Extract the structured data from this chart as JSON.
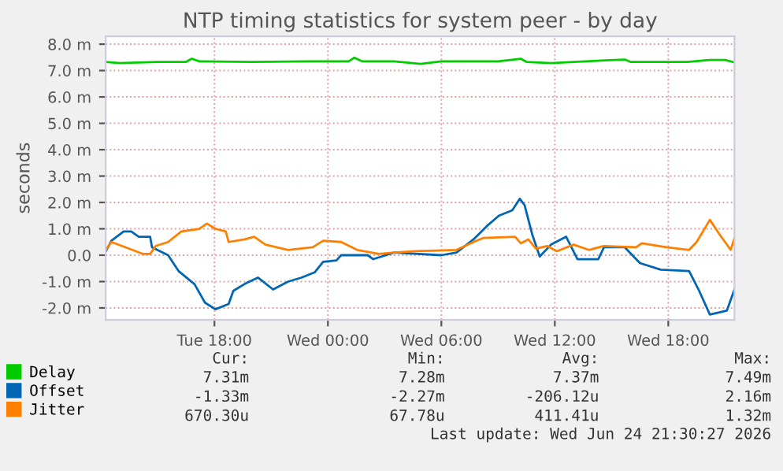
{
  "chart_data": {
    "type": "line",
    "title": "NTP timing statistics for system peer - by day",
    "ylabel": "seconds",
    "xlim": [
      "2026-06-23T12:15",
      "2026-06-24T21:30"
    ],
    "xticks": [
      {
        "value": "2026-06-23T18:00",
        "label": "Tue 18:00"
      },
      {
        "value": "2026-06-24T00:00",
        "label": "Wed 00:00"
      },
      {
        "value": "2026-06-24T06:00",
        "label": "Wed 06:00"
      },
      {
        "value": "2026-06-24T12:00",
        "label": "Wed 12:00"
      },
      {
        "value": "2026-06-24T18:00",
        "label": "Wed 18:00"
      }
    ],
    "ylim": [
      -2.45,
      8.3
    ],
    "yticks": [
      {
        "value": -2,
        "label": "-2.0 m"
      },
      {
        "value": -1,
        "label": "-1.0 m"
      },
      {
        "value": 0,
        "label": "0.0"
      },
      {
        "value": 1,
        "label": "1.0 m"
      },
      {
        "value": 2,
        "label": "2.0 m"
      },
      {
        "value": 3,
        "label": "3.0 m"
      },
      {
        "value": 4,
        "label": "4.0 m"
      },
      {
        "value": 5,
        "label": "5.0 m"
      },
      {
        "value": 6,
        "label": "6.0 m"
      },
      {
        "value": 7,
        "label": "7.0 m"
      },
      {
        "value": 8,
        "label": "8.0 m"
      }
    ],
    "grid": true,
    "legend": "bottom",
    "marker": "none",
    "line_style": "solid",
    "series": [
      {
        "name": "Delay",
        "color": "#00cc00",
        "x": [
          "2026-06-23T12:15",
          "2026-06-23T13:00",
          "2026-06-23T13:36",
          "2026-06-23T15:00",
          "2026-06-23T16:30",
          "2026-06-23T16:48",
          "2026-06-23T17:12",
          "2026-06-23T20:00",
          "2026-06-23T23:00",
          "2026-06-24T01:06",
          "2026-06-24T01:24",
          "2026-06-24T01:48",
          "2026-06-24T03:30",
          "2026-06-24T04:54",
          "2026-06-24T06:00",
          "2026-06-24T09:00",
          "2026-06-24T10:12",
          "2026-06-24T10:30",
          "2026-06-24T11:48",
          "2026-06-24T13:00",
          "2026-06-24T15:42",
          "2026-06-24T16:00",
          "2026-06-24T19:00",
          "2026-06-24T20:12",
          "2026-06-24T21:00",
          "2026-06-24T21:30"
        ],
        "values": [
          7.33,
          7.28,
          7.3,
          7.33,
          7.33,
          7.45,
          7.35,
          7.33,
          7.35,
          7.35,
          7.49,
          7.35,
          7.35,
          7.25,
          7.35,
          7.35,
          7.45,
          7.33,
          7.28,
          7.33,
          7.42,
          7.33,
          7.33,
          7.4,
          7.4,
          7.31
        ]
      },
      {
        "name": "Offset",
        "color": "#0066b3",
        "x": [
          "2026-06-23T12:15",
          "2026-06-23T12:33",
          "2026-06-23T13:12",
          "2026-06-23T13:36",
          "2026-06-23T14:00",
          "2026-06-23T14:36",
          "2026-06-23T14:42",
          "2026-06-23T15:33",
          "2026-06-23T16:06",
          "2026-06-23T16:57",
          "2026-06-23T17:30",
          "2026-06-23T18:03",
          "2026-06-23T18:45",
          "2026-06-23T19:00",
          "2026-06-23T19:42",
          "2026-06-23T20:18",
          "2026-06-23T21:06",
          "2026-06-23T21:54",
          "2026-06-23T22:36",
          "2026-06-23T23:18",
          "2026-06-23T23:45",
          "2026-06-24T00:27",
          "2026-06-24T00:42",
          "2026-06-24T02:06",
          "2026-06-24T02:24",
          "2026-06-24T03:30",
          "2026-06-24T06:00",
          "2026-06-24T06:48",
          "2026-06-24T07:42",
          "2026-06-24T08:24",
          "2026-06-24T09:03",
          "2026-06-24T09:45",
          "2026-06-24T10:09",
          "2026-06-24T10:24",
          "2026-06-24T10:48",
          "2026-06-24T11:12",
          "2026-06-24T11:48",
          "2026-06-24T12:36",
          "2026-06-24T13:12",
          "2026-06-24T14:18",
          "2026-06-24T14:36",
          "2026-06-24T15:42",
          "2026-06-24T16:30",
          "2026-06-24T17:36",
          "2026-06-24T19:06",
          "2026-06-24T19:36",
          "2026-06-24T20:12",
          "2026-06-24T21:06",
          "2026-06-24T21:30"
        ],
        "values": [
          0.14,
          0.55,
          0.9,
          0.9,
          0.7,
          0.7,
          0.3,
          0.0,
          -0.6,
          -1.1,
          -1.8,
          -2.05,
          -1.85,
          -1.35,
          -1.05,
          -0.85,
          -1.3,
          -1.0,
          -0.85,
          -0.65,
          -0.25,
          -0.2,
          0.0,
          0.0,
          -0.15,
          0.1,
          0.0,
          0.1,
          0.6,
          1.1,
          1.5,
          1.7,
          2.14,
          1.9,
          0.8,
          -0.05,
          0.4,
          0.7,
          -0.15,
          -0.15,
          0.3,
          0.3,
          -0.3,
          -0.55,
          -0.6,
          -1.3,
          -2.25,
          -2.1,
          -1.3
        ]
      },
      {
        "name": "Jitter",
        "color": "#ff8000",
        "x": [
          "2026-06-23T12:15",
          "2026-06-23T12:33",
          "2026-06-23T13:18",
          "2026-06-23T14:12",
          "2026-06-23T14:36",
          "2026-06-23T14:54",
          "2026-06-23T15:33",
          "2026-06-23T16:15",
          "2026-06-23T17:12",
          "2026-06-23T17:36",
          "2026-06-23T18:03",
          "2026-06-23T18:36",
          "2026-06-23T18:45",
          "2026-06-23T19:36",
          "2026-06-23T20:06",
          "2026-06-23T20:42",
          "2026-06-23T21:54",
          "2026-06-23T23:12",
          "2026-06-23T23:45",
          "2026-06-24T00:42",
          "2026-06-24T01:33",
          "2026-06-24T02:42",
          "2026-06-24T03:30",
          "2026-06-24T04:36",
          "2026-06-24T06:48",
          "2026-06-24T07:42",
          "2026-06-24T08:12",
          "2026-06-24T09:54",
          "2026-06-24T10:12",
          "2026-06-24T10:36",
          "2026-06-24T11:00",
          "2026-06-24T11:36",
          "2026-06-24T12:06",
          "2026-06-24T13:00",
          "2026-06-24T13:48",
          "2026-06-24T14:36",
          "2026-06-24T16:18",
          "2026-06-24T16:36",
          "2026-06-24T17:54",
          "2026-06-24T19:06",
          "2026-06-24T19:30",
          "2026-06-24T20:12",
          "2026-06-24T20:42",
          "2026-06-24T21:18",
          "2026-06-24T21:30"
        ],
        "values": [
          0.2,
          0.5,
          0.3,
          0.05,
          0.05,
          0.35,
          0.5,
          0.9,
          1.0,
          1.2,
          1.0,
          0.9,
          0.5,
          0.6,
          0.7,
          0.4,
          0.2,
          0.3,
          0.55,
          0.5,
          0.2,
          0.05,
          0.1,
          0.15,
          0.2,
          0.5,
          0.65,
          0.7,
          0.45,
          0.6,
          0.25,
          0.35,
          0.15,
          0.4,
          0.2,
          0.35,
          0.3,
          0.45,
          0.3,
          0.2,
          0.5,
          1.34,
          0.8,
          0.2,
          0.65
        ]
      }
    ],
    "annotations": [
      "Cur:",
      "Min:",
      "Avg:",
      "Max:",
      "7.31m",
      "7.28m",
      "7.37m",
      "7.49m",
      "-1.33m",
      "-2.27m",
      "-206.12u",
      "2.16m",
      "670.30u",
      "67.78u",
      "411.41u",
      "1.32m",
      "Last update: Wed Jun 24 21:30:27 2026"
    ]
  }
}
